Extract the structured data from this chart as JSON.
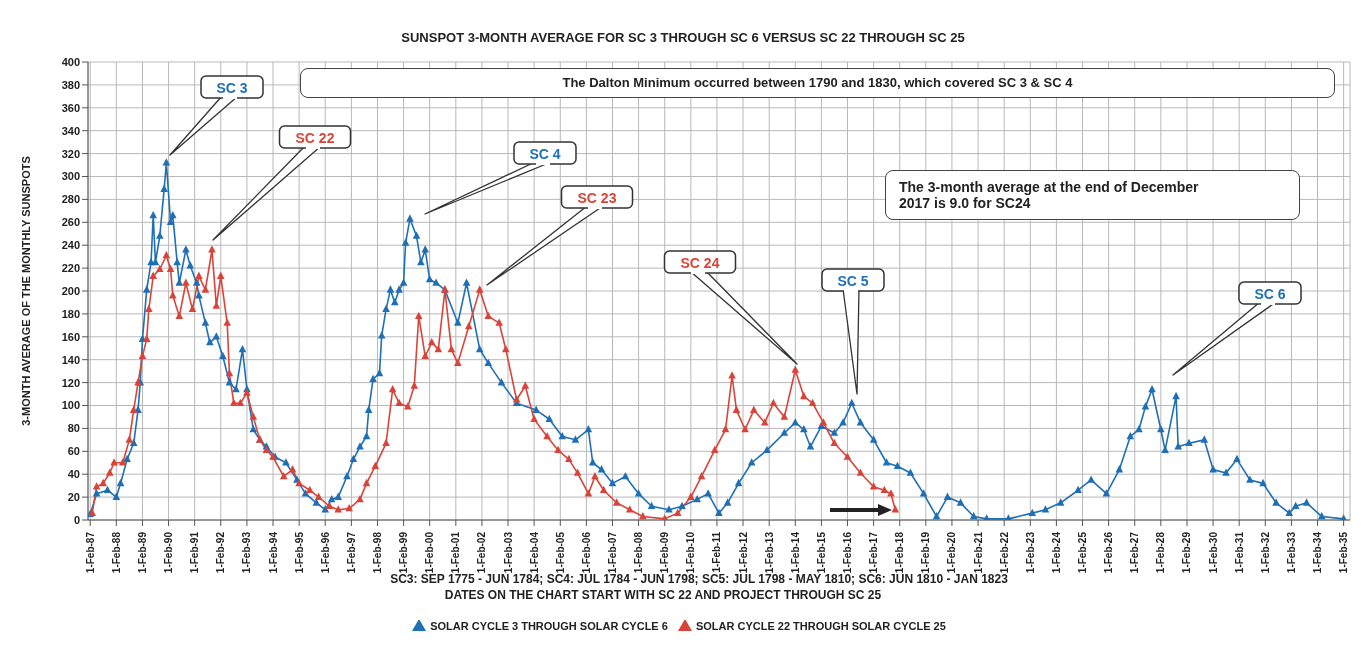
{
  "chart_data": {
    "type": "line",
    "title": "SUNSPOT 3-MONTH AVERAGE FOR SC 3 THROUGH SC 6 VERSUS SC 22 THROUGH SC 25",
    "xlabel": "SC3: SEP 1775 - JUN 1784; SC4: JUL 1784 - JUN 1798; SC5: JUL 1798 - MAY 1810; SC6: JUN 1810 - JAN 1823",
    "ylabel": "3-MONTH AVERAGE OF THE MONTHLY SUNSPOTS",
    "annotations": [
      "The Dalton Minimum occurred between 1790 and 1830, which covered SC 3 & SC 4",
      "The 3-month average at the end of December 2017 is 9.0 for SC24",
      "DATES ON THE CHART START WITH SC 22 AND PROJECT THROUGH SC 25",
      "SC 3",
      "SC 22",
      "SC 4",
      "SC 23",
      "SC 24",
      "SC 5",
      "SC 6"
    ],
    "xlim": [
      "1987-01-01",
      "2035-05-01"
    ],
    "xticks": [
      {
        "value": "1987-02-01",
        "label": "1-Feb-87"
      },
      {
        "value": "1988-02-01",
        "label": "1-Feb-88"
      },
      {
        "value": "1989-02-01",
        "label": "1-Feb-89"
      },
      {
        "value": "1990-02-01",
        "label": "1-Feb-90"
      },
      {
        "value": "1991-02-01",
        "label": "1-Feb-91"
      },
      {
        "value": "1992-02-01",
        "label": "1-Feb-92"
      },
      {
        "value": "1993-02-01",
        "label": "1-Feb-93"
      },
      {
        "value": "1994-02-01",
        "label": "1-Feb-94"
      },
      {
        "value": "1995-02-01",
        "label": "1-Feb-95"
      },
      {
        "value": "1996-02-01",
        "label": "1-Feb-96"
      },
      {
        "value": "1997-02-01",
        "label": "1-Feb-97"
      },
      {
        "value": "1998-02-01",
        "label": "1-Feb-98"
      },
      {
        "value": "1999-02-01",
        "label": "1-Feb-99"
      },
      {
        "value": "2000-02-01",
        "label": "1-Feb-00"
      },
      {
        "value": "2001-02-01",
        "label": "1-Feb-01"
      },
      {
        "value": "2002-02-01",
        "label": "1-Feb-02"
      },
      {
        "value": "2003-02-01",
        "label": "1-Feb-03"
      },
      {
        "value": "2004-02-01",
        "label": "1-Feb-04"
      },
      {
        "value": "2005-02-01",
        "label": "1-Feb-05"
      },
      {
        "value": "2006-02-01",
        "label": "1-Feb-06"
      },
      {
        "value": "2007-02-01",
        "label": "1-Feb-07"
      },
      {
        "value": "2008-02-01",
        "label": "1-Feb-08"
      },
      {
        "value": "2009-02-01",
        "label": "1-Feb-09"
      },
      {
        "value": "2010-02-01",
        "label": "1-Feb-10"
      },
      {
        "value": "2011-02-01",
        "label": "1-Feb-11"
      },
      {
        "value": "2012-02-01",
        "label": "1-Feb-12"
      },
      {
        "value": "2013-02-01",
        "label": "1-Feb-13"
      },
      {
        "value": "2014-02-01",
        "label": "1-Feb-14"
      },
      {
        "value": "2015-02-01",
        "label": "1-Feb-15"
      },
      {
        "value": "2016-02-01",
        "label": "1-Feb-16"
      },
      {
        "value": "2017-02-01",
        "label": "1-Feb-17"
      },
      {
        "value": "2018-02-01",
        "label": "1-Feb-18"
      },
      {
        "value": "2019-02-01",
        "label": "1-Feb-19"
      },
      {
        "value": "2020-02-01",
        "label": "1-Feb-20"
      },
      {
        "value": "2021-02-01",
        "label": "1-Feb-21"
      },
      {
        "value": "2022-02-01",
        "label": "1-Feb-22"
      },
      {
        "value": "2023-02-01",
        "label": "1-Feb-23"
      },
      {
        "value": "2024-02-01",
        "label": "1-Feb-24"
      },
      {
        "value": "2025-02-01",
        "label": "1-Feb-25"
      },
      {
        "value": "2026-02-01",
        "label": "1-Feb-26"
      },
      {
        "value": "2027-02-01",
        "label": "1-Feb-27"
      },
      {
        "value": "2028-02-01",
        "label": "1-Feb-28"
      },
      {
        "value": "2029-02-01",
        "label": "1-Feb-29"
      },
      {
        "value": "2030-02-01",
        "label": "1-Feb-30"
      },
      {
        "value": "2031-02-01",
        "label": "1-Feb-31"
      },
      {
        "value": "2032-02-01",
        "label": "1-Feb-32"
      },
      {
        "value": "2033-02-01",
        "label": "1-Feb-33"
      },
      {
        "value": "2034-02-01",
        "label": "1-Feb-34"
      },
      {
        "value": "2035-02-01",
        "label": "1-Feb-35"
      }
    ],
    "ylim": [
      0,
      400
    ],
    "yticks": [
      0,
      20,
      40,
      60,
      80,
      100,
      120,
      140,
      160,
      180,
      200,
      220,
      240,
      260,
      280,
      300,
      320,
      340,
      360,
      380,
      400
    ],
    "grid": true,
    "legend": "bottom",
    "marker": "triangle",
    "line_style": "solid",
    "series": [
      {
        "name": "SOLAR CYCLE 3 THROUGH SOLAR CYCLE 6",
        "color": "#1f6fb5",
        "x": [
          "1987-02",
          "1987-05",
          "1987-10",
          "1988-02",
          "1988-04",
          "1988-07",
          "1988-10",
          "1988-12",
          "1989-01",
          "1989-02",
          "1989-04",
          "1989-06",
          "1989-07",
          "1989-08",
          "1989-10",
          "1989-12",
          "1990-01",
          "1990-03",
          "1990-04",
          "1990-06",
          "1990-07",
          "1990-10",
          "1990-12",
          "1991-03",
          "1991-04",
          "1991-07",
          "1991-09",
          "1991-12",
          "1992-03",
          "1992-06",
          "1992-09",
          "1992-12",
          "1993-02",
          "1993-05",
          "1993-08",
          "1993-11",
          "1994-03",
          "1994-08",
          "1995-01",
          "1995-05",
          "1995-10",
          "1996-02",
          "1996-05",
          "1996-08",
          "1996-12",
          "1997-03",
          "1997-06",
          "1997-09",
          "1997-10",
          "1997-12",
          "1998-03",
          "1998-04",
          "1998-06",
          "1998-08",
          "1998-10",
          "1998-12",
          "1999-02",
          "1999-03",
          "1999-05",
          "1999-08",
          "1999-10",
          "1999-12",
          "2000-02",
          "2000-05",
          "2000-09",
          "2001-03",
          "2001-07",
          "2002-01",
          "2002-05",
          "2002-11",
          "2003-06",
          "2004-03",
          "2004-09",
          "2005-03",
          "2005-09",
          "2006-03",
          "2006-05",
          "2006-09",
          "2007-02",
          "2007-08",
          "2008-02",
          "2008-08",
          "2009-04",
          "2009-10",
          "2010-05",
          "2010-10",
          "2011-03",
          "2011-07",
          "2011-12",
          "2012-06",
          "2013-01",
          "2013-09",
          "2014-02",
          "2014-06",
          "2014-09",
          "2015-02",
          "2015-08",
          "2015-12",
          "2016-04",
          "2016-08",
          "2017-02",
          "2017-08",
          "2018-01",
          "2018-07",
          "2019-01",
          "2019-07",
          "2019-12",
          "2020-06",
          "2020-12",
          "2021-06",
          "2022-04",
          "2023-03",
          "2023-09",
          "2024-04",
          "2024-12",
          "2025-06",
          "2026-01",
          "2026-07",
          "2026-12",
          "2027-04",
          "2027-07",
          "2027-10",
          "2028-02",
          "2028-04",
          "2028-09",
          "2028-10",
          "2029-03",
          "2029-10",
          "2030-02",
          "2030-08",
          "2031-01",
          "2031-07",
          "2032-01",
          "2032-07",
          "2033-01",
          "2033-04",
          "2033-09",
          "2034-04",
          "2035-02"
        ],
        "values": [
          5,
          23,
          26,
          20,
          32,
          53,
          67,
          96,
          120,
          158,
          201,
          225,
          266,
          225,
          248,
          289,
          312,
          260,
          266,
          225,
          207,
          236,
          222,
          207,
          196,
          172,
          155,
          160,
          143,
          120,
          114,
          149,
          114,
          79,
          70,
          64,
          55,
          50,
          35,
          23,
          15,
          9,
          18,
          20,
          38,
          53,
          64,
          73,
          96,
          123,
          128,
          161,
          184,
          201,
          190,
          201,
          207,
          242,
          263,
          248,
          225,
          236,
          210,
          207,
          201,
          172,
          207,
          149,
          137,
          120,
          102,
          96,
          88,
          73,
          70,
          79,
          50,
          44,
          32,
          38,
          23,
          12,
          9,
          12,
          18,
          23,
          6,
          15,
          32,
          50,
          61,
          76,
          85,
          79,
          64,
          82,
          76,
          85,
          102,
          85,
          70,
          50,
          47,
          41,
          23,
          3,
          20,
          15,
          3,
          1,
          1,
          6,
          9,
          15,
          26,
          35,
          23,
          44,
          73,
          79,
          99,
          114,
          79,
          61,
          108,
          64,
          67,
          70,
          44,
          41,
          53,
          35,
          32,
          15,
          6,
          12,
          15,
          3,
          1
        ]
      },
      {
        "name": "SOLAR CYCLE 22 THROUGH SOLAR CYCLE 25",
        "color": "#d9443a",
        "x": [
          "1987-03",
          "1987-05",
          "1987-08",
          "1987-11",
          "1988-01",
          "1988-05",
          "1988-08",
          "1988-10",
          "1988-12",
          "1989-02",
          "1989-04",
          "1989-05",
          "1989-07",
          "1989-10",
          "1990-01",
          "1990-03",
          "1990-04",
          "1990-07",
          "1990-10",
          "1991-01",
          "1991-04",
          "1991-07",
          "1991-10",
          "1991-12",
          "1992-02",
          "1992-05",
          "1992-06",
          "1992-08",
          "1992-11",
          "1993-02",
          "1993-05",
          "1993-08",
          "1993-11",
          "1994-02",
          "1994-07",
          "1994-11",
          "1995-02",
          "1995-07",
          "1995-11",
          "1996-04",
          "1996-08",
          "1997-01",
          "1997-06",
          "1997-09",
          "1998-01",
          "1998-06",
          "1998-09",
          "1998-12",
          "1999-04",
          "1999-07",
          "1999-09",
          "1999-12",
          "2000-03",
          "2000-06",
          "2000-09",
          "2000-12",
          "2001-03",
          "2001-08",
          "2002-01",
          "2002-05",
          "2002-10",
          "2003-01",
          "2003-06",
          "2003-10",
          "2004-02",
          "2004-08",
          "2005-01",
          "2005-06",
          "2005-10",
          "2006-03",
          "2006-06",
          "2006-10",
          "2007-04",
          "2007-10",
          "2008-04",
          "2009-02",
          "2009-08",
          "2010-02",
          "2010-07",
          "2011-01",
          "2011-06",
          "2011-09",
          "2011-11",
          "2012-03",
          "2012-07",
          "2012-12",
          "2013-04",
          "2013-09",
          "2014-02",
          "2014-06",
          "2014-10",
          "2015-03",
          "2015-08",
          "2016-02",
          "2016-08",
          "2017-02",
          "2017-07",
          "2017-10",
          "2017-12"
        ],
        "values": [
          6,
          29,
          32,
          41,
          50,
          50,
          70,
          96,
          120,
          143,
          158,
          184,
          213,
          219,
          231,
          219,
          196,
          178,
          207,
          184,
          213,
          201,
          236,
          187,
          213,
          172,
          128,
          102,
          102,
          111,
          90,
          70,
          61,
          55,
          38,
          44,
          32,
          26,
          20,
          12,
          9,
          10,
          18,
          32,
          47,
          67,
          114,
          102,
          99,
          117,
          178,
          143,
          155,
          149,
          201,
          149,
          137,
          169,
          201,
          178,
          172,
          149,
          105,
          117,
          88,
          73,
          61,
          53,
          41,
          23,
          38,
          26,
          15,
          9,
          3,
          1,
          6,
          20,
          38,
          61,
          79,
          126,
          96,
          79,
          96,
          85,
          102,
          90,
          131,
          108,
          102,
          85,
          67,
          55,
          41,
          29,
          26,
          23,
          9
        ]
      }
    ]
  }
}
